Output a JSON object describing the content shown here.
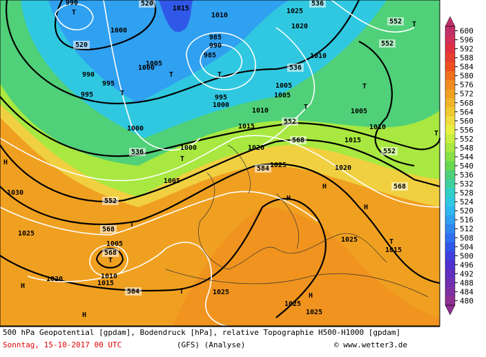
{
  "map_labels": [
    "520",
    "520",
    "536",
    "552",
    "552",
    "536",
    "552",
    "568",
    "552",
    "568",
    "536",
    "552",
    "568",
    "568",
    "584",
    "584",
    "990",
    "1000",
    "1015",
    "1010",
    "1025",
    "1020",
    "985",
    "990",
    "985",
    "1005",
    "1000",
    "990",
    "995",
    "995",
    "995",
    "1000",
    "1010",
    "1005",
    "1005",
    "1010",
    "1015",
    "1005",
    "1010",
    "1015",
    "1000",
    "1000",
    "1020",
    "1025",
    "1020",
    "1005",
    "1030",
    "1025",
    "1005",
    "1010",
    "1015",
    "1020",
    "1025",
    "1015",
    "1025",
    "1025",
    "1025",
    "T",
    "T",
    "T",
    "T",
    "T",
    "T",
    "T",
    "T",
    "T",
    "T",
    "T",
    "T",
    "T",
    "H",
    "H",
    "H",
    "H",
    "H",
    "H",
    "H"
  ],
  "legend": {
    "values": [
      600,
      596,
      592,
      588,
      584,
      580,
      576,
      572,
      568,
      564,
      560,
      556,
      552,
      548,
      544,
      540,
      536,
      532,
      528,
      524,
      520,
      516,
      512,
      508,
      504,
      500,
      496,
      492,
      488,
      484,
      480
    ],
    "colors": [
      "#c0306a",
      "#d0305a",
      "#e03040",
      "#e84030",
      "#f05020",
      "#f07020",
      "#f08c20",
      "#f0a020",
      "#f0b428",
      "#f0c830",
      "#f0dc40",
      "#e8f040",
      "#c8f040",
      "#a8e840",
      "#88e048",
      "#68d850",
      "#50d078",
      "#40d0a0",
      "#30d0c8",
      "#30c8e0",
      "#30b8f0",
      "#30a0f0",
      "#3088f0",
      "#3070f0",
      "#3058e8",
      "#4040e0",
      "#5030d0",
      "#6030c0",
      "#7030b0",
      "#8030a0",
      "#903090"
    ]
  },
  "footer": {
    "description": "500 hPa Geopotential [gpdam], Bodendruck [hPa], relative Topographie H500-H1000 [gpdam]",
    "date": "Sonntag, 15-10-2017  00 UTC",
    "model": "(GFS)  (Analyse)",
    "credit": "© www.wetter3.de"
  }
}
